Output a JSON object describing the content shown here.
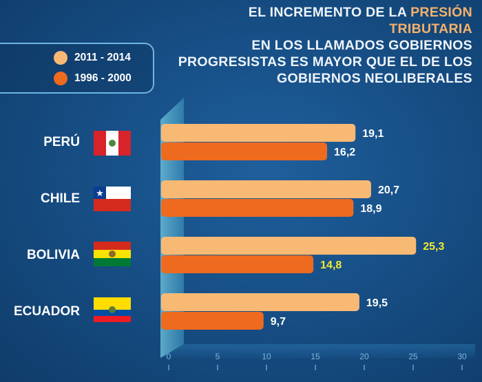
{
  "headline": {
    "line1_prefix": "EL INCREMENTO DE LA ",
    "line1_highlight": "PRESIÓN TRIBUTARIA",
    "line2": "EN LOS LLAMADOS GOBIERNOS",
    "line3": "PROGRESISTAS ES MAYOR QUE EL DE LOS",
    "line4": "GOBIERNOS NEOLIBERALES"
  },
  "colors": {
    "series_2011": "#f8b975",
    "series_1996": "#ee6a1f",
    "highlight_label": "#f2ea32",
    "normal_label": "#ffffff",
    "headline_highlight": "#f5b16a"
  },
  "chart_data": {
    "type": "bar",
    "orientation": "horizontal",
    "title": "EL INCREMENTO DE LA PRESIÓN TRIBUTARIA EN LOS LLAMADOS GOBIERNOS PROGRESISTAS ES MAYOR QUE EL DE LOS GOBIERNOS NEOLIBERALES",
    "categories": [
      "PERÚ",
      "CHILE",
      "BOLIVIA",
      "ECUADOR"
    ],
    "series": [
      {
        "name": "2011 - 2014",
        "values": [
          19.1,
          20.7,
          25.3,
          19.5
        ],
        "labels": [
          "19,1",
          "20,7",
          "25,3",
          "19,5"
        ]
      },
      {
        "name": "1996 - 2000",
        "values": [
          16.2,
          18.9,
          14.8,
          9.7
        ],
        "labels": [
          "16,2",
          "18,9",
          "14,8",
          "9,7"
        ]
      }
    ],
    "highlighted_category": "BOLIVIA",
    "xlim": [
      0,
      30
    ],
    "xticks": [
      0,
      5,
      10,
      15,
      20,
      25,
      30
    ],
    "legend_position": "top-left"
  }
}
